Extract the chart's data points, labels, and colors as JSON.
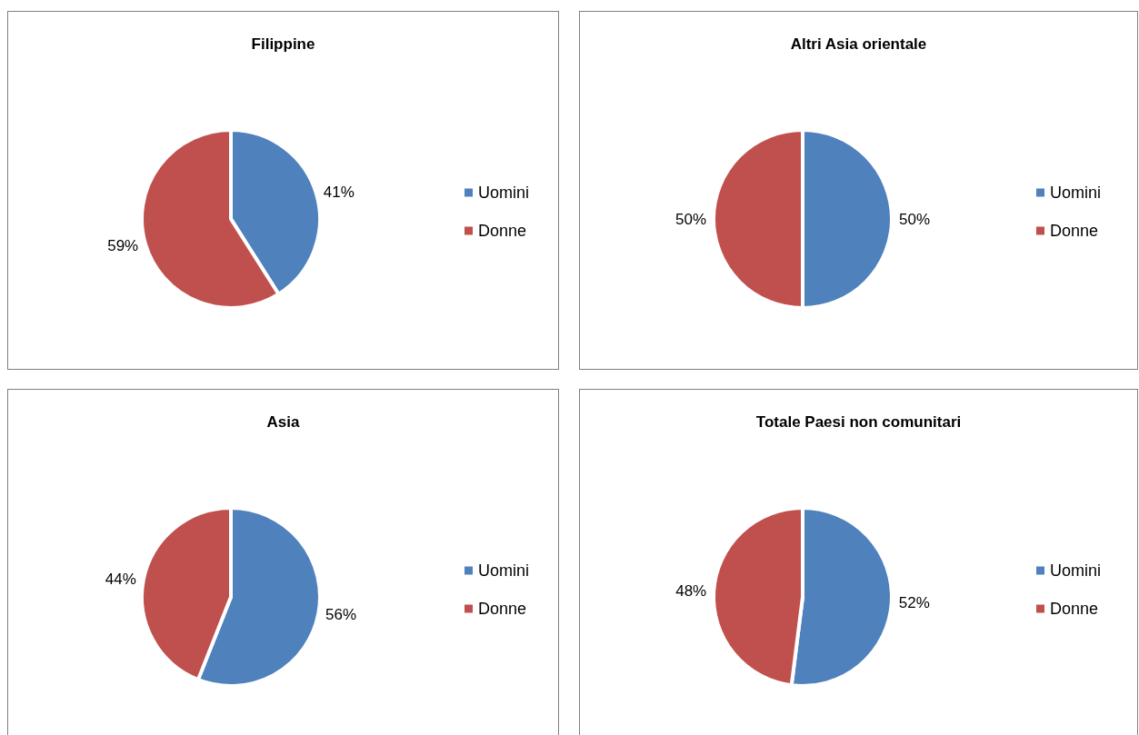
{
  "chart_data": [
    {
      "type": "pie",
      "title": "Filippine",
      "categories": [
        "Uomini",
        "Donne"
      ],
      "values": [
        41,
        59
      ],
      "colors": [
        "#4f81bd",
        "#c0504d"
      ],
      "value_labels": [
        "41%",
        "59%"
      ],
      "legend": "right"
    },
    {
      "type": "pie",
      "title": "Altri Asia orientale",
      "categories": [
        "Uomini",
        "Donne"
      ],
      "values": [
        50,
        50
      ],
      "colors": [
        "#4f81bd",
        "#c0504d"
      ],
      "value_labels": [
        "50%",
        "50%"
      ],
      "legend": "right"
    },
    {
      "type": "pie",
      "title": "Asia",
      "categories": [
        "Uomini",
        "Donne"
      ],
      "values": [
        56,
        44
      ],
      "colors": [
        "#4f81bd",
        "#c0504d"
      ],
      "value_labels": [
        "56%",
        "44%"
      ],
      "legend": "right"
    },
    {
      "type": "pie",
      "title": "Totale Paesi non comunitari",
      "categories": [
        "Uomini",
        "Donne"
      ],
      "values": [
        52,
        48
      ],
      "colors": [
        "#4f81bd",
        "#c0504d"
      ],
      "value_labels": [
        "52%",
        "48%"
      ],
      "legend": "right"
    }
  ]
}
